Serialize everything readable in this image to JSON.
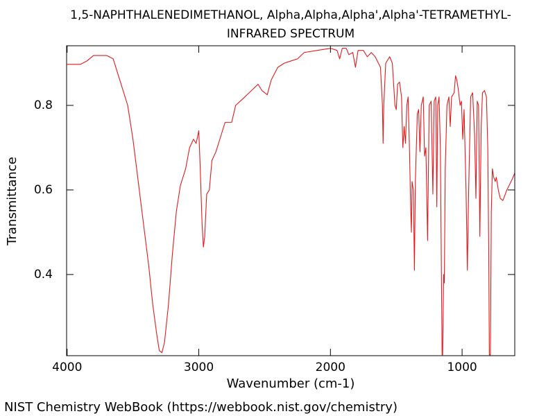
{
  "chart_data": {
    "type": "line",
    "title": "1,5-NAPHTHALENEDIMETHANOL, Alpha,Alpha,Alpha',Alpha'-TETRAMETHYL-",
    "subtitle": "INFRARED SPECTRUM",
    "x_label": "Wavenumber (cm-1)",
    "y_label": "Transmittance",
    "source": "NIST Chemistry WebBook (https://webbook.nist.gov/chemistry)",
    "xlim": [
      4004,
      600
    ],
    "ylim": [
      0.208,
      0.941
    ],
    "xticks": [
      4000,
      3000,
      2000,
      1000
    ],
    "yticks": [
      0.4,
      0.6,
      0.8
    ],
    "grid": false,
    "series": [
      {
        "color": "#e31a1c",
        "x": [
          4000,
          3900,
          3850,
          3800,
          3700,
          3650,
          3620,
          3580,
          3540,
          3500,
          3460,
          3420,
          3380,
          3350,
          3320,
          3300,
          3280,
          3260,
          3230,
          3200,
          3170,
          3140,
          3100,
          3070,
          3040,
          3020,
          3000,
          2990,
          2975,
          2965,
          2955,
          2940,
          2920,
          2900,
          2870,
          2840,
          2800,
          2750,
          2720,
          2650,
          2600,
          2550,
          2520,
          2480,
          2450,
          2400,
          2350,
          2300,
          2250,
          2200,
          2100,
          2000,
          1950,
          1930,
          1910,
          1880,
          1860,
          1830,
          1810,
          1790,
          1750,
          1720,
          1690,
          1660,
          1620,
          1605,
          1600,
          1595,
          1580,
          1550,
          1530,
          1510,
          1500,
          1490,
          1475,
          1460,
          1450,
          1440,
          1430,
          1420,
          1410,
          1400,
          1390,
          1385,
          1380,
          1370,
          1362,
          1355,
          1340,
          1330,
          1320,
          1310,
          1295,
          1285,
          1275,
          1262,
          1250,
          1235,
          1222,
          1212,
          1200,
          1192,
          1185,
          1175,
          1165,
          1152,
          1148,
          1140,
          1135,
          1128,
          1115,
          1100,
          1090,
          1080,
          1060,
          1050,
          1040,
          1030,
          1015,
          1005,
          995,
          985,
          970,
          960,
          950,
          935,
          920,
          905,
          895,
          885,
          875,
          865,
          855,
          845,
          830,
          815,
          805,
          798,
          793,
          785,
          778,
          770,
          760,
          748,
          740,
          725,
          710,
          690,
          660,
          620,
          600
        ],
        "values": [
          0.897,
          0.897,
          0.905,
          0.918,
          0.918,
          0.91,
          0.88,
          0.84,
          0.8,
          0.72,
          0.62,
          0.52,
          0.42,
          0.33,
          0.26,
          0.22,
          0.215,
          0.24,
          0.33,
          0.45,
          0.55,
          0.61,
          0.65,
          0.7,
          0.72,
          0.71,
          0.74,
          0.66,
          0.52,
          0.465,
          0.49,
          0.59,
          0.6,
          0.67,
          0.69,
          0.72,
          0.76,
          0.76,
          0.8,
          0.82,
          0.835,
          0.85,
          0.835,
          0.825,
          0.86,
          0.89,
          0.9,
          0.905,
          0.91,
          0.925,
          0.93,
          0.935,
          0.93,
          0.91,
          0.935,
          0.935,
          0.92,
          0.925,
          0.89,
          0.93,
          0.93,
          0.915,
          0.925,
          0.915,
          0.89,
          0.8,
          0.71,
          0.8,
          0.9,
          0.915,
          0.9,
          0.8,
          0.79,
          0.85,
          0.855,
          0.82,
          0.7,
          0.75,
          0.71,
          0.8,
          0.82,
          0.7,
          0.55,
          0.5,
          0.62,
          0.6,
          0.41,
          0.62,
          0.78,
          0.79,
          0.69,
          0.8,
          0.82,
          0.68,
          0.7,
          0.48,
          0.8,
          0.81,
          0.59,
          0.81,
          0.82,
          0.56,
          0.8,
          0.82,
          0.7,
          0.21,
          0.21,
          0.4,
          0.38,
          0.65,
          0.8,
          0.82,
          0.75,
          0.82,
          0.83,
          0.87,
          0.86,
          0.84,
          0.8,
          0.81,
          0.72,
          0.79,
          0.6,
          0.41,
          0.6,
          0.82,
          0.83,
          0.73,
          0.58,
          0.81,
          0.8,
          0.49,
          0.75,
          0.83,
          0.835,
          0.82,
          0.7,
          0.47,
          0.21,
          0.21,
          0.55,
          0.65,
          0.63,
          0.62,
          0.63,
          0.6,
          0.58,
          0.575,
          0.6,
          0.625,
          0.64
        ]
      }
    ]
  }
}
